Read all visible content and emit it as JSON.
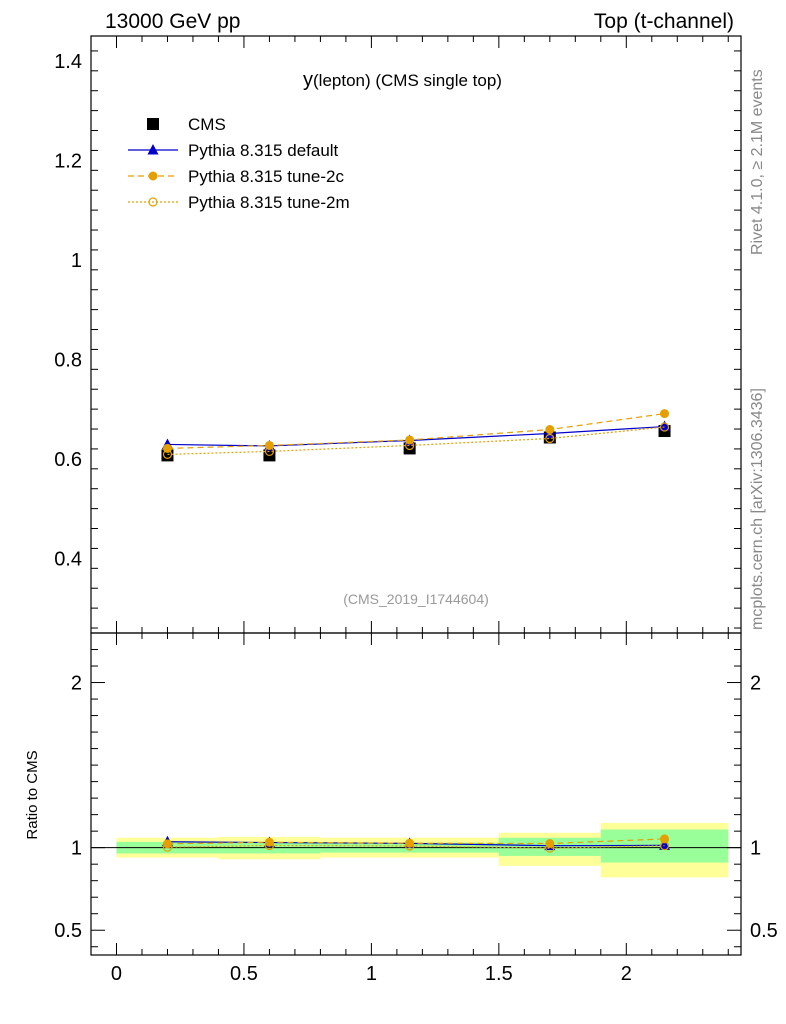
{
  "header": {
    "left_label": "13000 GeV pp",
    "right_label": "Top (t-channel)"
  },
  "side_labels": {
    "rivet": "Rivet 4.1.0, ≥ 2.1M events",
    "mcplots": "mcplots.cern.ch [arXiv:1306.3436]"
  },
  "chart_data": [
    {
      "type": "line",
      "panel": "main",
      "title_main": "y",
      "title_sub": "(lepton) (CMS single top)",
      "watermark": "(CMS_2019_I1744604)",
      "xlim": [
        -0.1,
        2.45
      ],
      "ylim": [
        0.25,
        1.45
      ],
      "x_ticks": [
        0,
        0.5,
        1,
        1.5,
        2
      ],
      "x_tick_labels": [
        "0",
        "0.5",
        "1",
        "1.5",
        "2"
      ],
      "y_ticks": [
        0.4,
        0.6,
        0.8,
        1.0,
        1.2,
        1.4
      ],
      "y_tick_labels": [
        "0.4",
        "0.6",
        "0.8",
        "1",
        "1.2",
        "1.4"
      ],
      "series": [
        {
          "name": "CMS",
          "color": "#000000",
          "marker": "square",
          "x": [
            0.2,
            0.6,
            1.15,
            1.7,
            2.15
          ],
          "y": [
            0.607,
            0.607,
            0.621,
            0.643,
            0.656
          ]
        },
        {
          "name": "Pythia 8.315 default",
          "color": "#0000cc",
          "marker": "triangle",
          "line": "solid",
          "x": [
            0.2,
            0.6,
            1.15,
            1.7,
            2.15
          ],
          "y": [
            0.629,
            0.626,
            0.637,
            0.651,
            0.665
          ]
        },
        {
          "name": "Pythia 8.315 tune-2c",
          "color": "#e69f00",
          "marker": "circle",
          "line": "dashed",
          "x": [
            0.2,
            0.6,
            1.15,
            1.7,
            2.15
          ],
          "y": [
            0.621,
            0.627,
            0.638,
            0.659,
            0.691
          ]
        },
        {
          "name": "Pythia 8.315 tune-2m",
          "color": "#e69f00",
          "marker": "open-circle",
          "line": "dotted",
          "x": [
            0.2,
            0.6,
            1.15,
            1.7,
            2.15
          ],
          "y": [
            0.609,
            0.615,
            0.627,
            0.641,
            0.664
          ]
        }
      ]
    },
    {
      "type": "line",
      "panel": "ratio",
      "ylabel": "Ratio to CMS",
      "ylim": [
        0.35,
        2.3
      ],
      "y_ticks": [
        0.5,
        1,
        2
      ],
      "y_tick_labels": [
        "0.5",
        "1",
        "2"
      ],
      "bands": {
        "edges": [
          0,
          0.4,
          0.8,
          1.5,
          1.9,
          2.4
        ],
        "inner": [
          [
            0.965,
            1.035
          ],
          [
            0.965,
            1.035
          ],
          [
            0.97,
            1.03
          ],
          [
            0.95,
            1.06
          ],
          [
            0.91,
            1.11
          ]
        ],
        "outer": [
          [
            0.94,
            1.06
          ],
          [
            0.93,
            1.065
          ],
          [
            0.94,
            1.06
          ],
          [
            0.89,
            1.09
          ],
          [
            0.82,
            1.15
          ]
        ]
      },
      "series": [
        {
          "name": "Pythia 8.315 default",
          "x": [
            0.2,
            0.6,
            1.15,
            1.7,
            2.15
          ],
          "y": [
            1.036,
            1.031,
            1.026,
            1.012,
            1.014
          ]
        },
        {
          "name": "Pythia 8.315 tune-2c",
          "x": [
            0.2,
            0.6,
            1.15,
            1.7,
            2.15
          ],
          "y": [
            1.023,
            1.033,
            1.027,
            1.025,
            1.053
          ]
        },
        {
          "name": "Pythia 8.315 tune-2m",
          "x": [
            0.2,
            0.6,
            1.15,
            1.7,
            2.15
          ],
          "y": [
            1.003,
            1.013,
            1.01,
            0.997,
            1.012
          ]
        }
      ]
    }
  ]
}
